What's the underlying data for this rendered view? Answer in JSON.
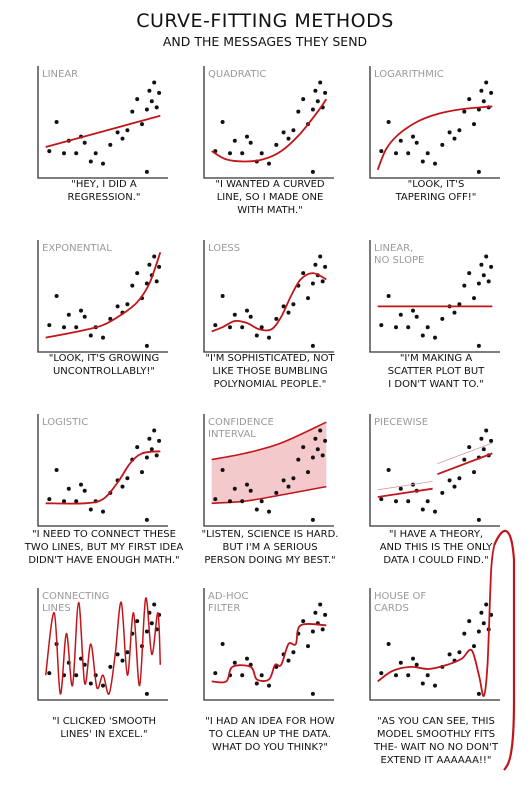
{
  "title": "CURVE-FITTING METHODS",
  "subtitle": "AND THE MESSAGES THEY SEND",
  "colors": {
    "curve": "#c0161b",
    "band": "#f4c9cc",
    "point": "#111111",
    "frame": "#333333",
    "label": "#9a9a9a"
  },
  "panels": [
    {
      "label": [
        "LINEAR"
      ],
      "caption": [
        "\"HEY, I DID A",
        "REGRESSION.\""
      ]
    },
    {
      "label": [
        "QUADRATIC"
      ],
      "caption": [
        "\"I WANTED A CURVED",
        "LINE, SO I MADE ONE",
        "WITH MATH.\""
      ]
    },
    {
      "label": [
        "LOGARITHMIC"
      ],
      "caption": [
        "\"LOOK, IT'S",
        "TAPERING OFF!\""
      ]
    },
    {
      "label": [
        "EXPONENTIAL"
      ],
      "caption": [
        "\"LOOK, IT'S GROWING",
        "UNCONTROLLABLY!\""
      ]
    },
    {
      "label": [
        "LOESS"
      ],
      "caption": [
        "\"I'M SOPHISTICATED, NOT",
        "LIKE THOSE BUMBLING",
        "POLYNOMIAL PEOPLE.\""
      ]
    },
    {
      "label": [
        "LINEAR,",
        "NO SLOPE"
      ],
      "caption": [
        "\"I'M MAKING A",
        "SCATTER PLOT BUT",
        "I DON'T WANT TO.\""
      ]
    },
    {
      "label": [
        "LOGISTIC"
      ],
      "caption": [
        "\"I NEED TO CONNECT THESE",
        "TWO LINES, BUT MY FIRST IDEA",
        "DIDN'T HAVE ENOUGH MATH.\""
      ]
    },
    {
      "label": [
        "CONFIDENCE",
        "INTERVAL"
      ],
      "caption": [
        "\"LISTEN, SCIENCE IS HARD.",
        "BUT I'M A SERIOUS",
        "PERSON DOING MY BEST.\""
      ]
    },
    {
      "label": [
        "PIECEWISE"
      ],
      "caption": [
        "\"I HAVE A THEORY,",
        "AND THIS IS THE ONLY",
        "DATA I COULD FIND.\""
      ]
    },
    {
      "label": [
        "CONNECTING",
        "LINES"
      ],
      "caption": [
        "\"I CLICKED 'SMOOTH",
        "LINES' IN EXCEL.\""
      ]
    },
    {
      "label": [
        "AD-HOC",
        "FILTER"
      ],
      "caption": [
        "\"I HAD AN IDEA FOR HOW",
        "TO CLEAN UP THE DATA.",
        "WHAT DO YOU THINK?\""
      ]
    },
    {
      "label": [
        "HOUSE OF",
        "CARDS"
      ],
      "caption": [
        "\"AS YOU CAN SEE, THIS",
        "MODEL SMOOTHLY FITS",
        "THE- WAIT NO NO DON'T",
        "EXTEND IT AAAAAA!!\""
      ]
    }
  ],
  "chart_data": {
    "type": "scatter",
    "xlim": [
      0,
      1
    ],
    "ylim": [
      0,
      1
    ],
    "points": [
      [
        0.06,
        0.22
      ],
      [
        0.12,
        0.5
      ],
      [
        0.18,
        0.2
      ],
      [
        0.22,
        0.32
      ],
      [
        0.28,
        0.2
      ],
      [
        0.32,
        0.36
      ],
      [
        0.35,
        0.3
      ],
      [
        0.4,
        0.12
      ],
      [
        0.44,
        0.2
      ],
      [
        0.5,
        0.1
      ],
      [
        0.56,
        0.28
      ],
      [
        0.62,
        0.4
      ],
      [
        0.66,
        0.34
      ],
      [
        0.7,
        0.42
      ],
      [
        0.74,
        0.6
      ],
      [
        0.78,
        0.72
      ],
      [
        0.82,
        0.48
      ],
      [
        0.86,
        0.62
      ],
      [
        0.88,
        0.8
      ],
      [
        0.9,
        0.7
      ],
      [
        0.92,
        0.88
      ],
      [
        0.94,
        0.64
      ],
      [
        0.96,
        0.78
      ],
      [
        0.86,
        0.02
      ]
    ],
    "fits": {
      "linear": [
        [
          0.03,
          0.26
        ],
        [
          0.97,
          0.56
        ]
      ],
      "quadratic": [
        [
          0.03,
          0.22
        ],
        [
          0.15,
          0.14
        ],
        [
          0.3,
          0.12
        ],
        [
          0.45,
          0.14
        ],
        [
          0.6,
          0.22
        ],
        [
          0.75,
          0.38
        ],
        [
          0.9,
          0.6
        ],
        [
          0.97,
          0.72
        ]
      ],
      "logarithmic": [
        [
          0.03,
          0.04
        ],
        [
          0.1,
          0.24
        ],
        [
          0.2,
          0.38
        ],
        [
          0.35,
          0.5
        ],
        [
          0.5,
          0.57
        ],
        [
          0.7,
          0.62
        ],
        [
          0.97,
          0.65
        ]
      ],
      "exponential": [
        [
          0.03,
          0.1
        ],
        [
          0.3,
          0.16
        ],
        [
          0.5,
          0.22
        ],
        [
          0.65,
          0.32
        ],
        [
          0.78,
          0.44
        ],
        [
          0.88,
          0.62
        ],
        [
          0.97,
          0.92
        ]
      ],
      "loess": [
        [
          0.03,
          0.16
        ],
        [
          0.12,
          0.2
        ],
        [
          0.22,
          0.26
        ],
        [
          0.32,
          0.24
        ],
        [
          0.42,
          0.18
        ],
        [
          0.52,
          0.18
        ],
        [
          0.6,
          0.3
        ],
        [
          0.68,
          0.5
        ],
        [
          0.76,
          0.66
        ],
        [
          0.86,
          0.72
        ],
        [
          0.97,
          0.66
        ]
      ],
      "no_slope": [
        [
          0.03,
          0.4
        ],
        [
          0.97,
          0.4
        ]
      ],
      "logistic": [
        [
          0.03,
          0.18
        ],
        [
          0.35,
          0.18
        ],
        [
          0.5,
          0.22
        ],
        [
          0.62,
          0.38
        ],
        [
          0.72,
          0.56
        ],
        [
          0.82,
          0.66
        ],
        [
          0.97,
          0.68
        ]
      ],
      "ci_upper": [
        [
          0.03,
          0.6
        ],
        [
          0.3,
          0.66
        ],
        [
          0.6,
          0.76
        ],
        [
          0.97,
          0.96
        ]
      ],
      "ci_lower": [
        [
          0.03,
          0.18
        ],
        [
          0.3,
          0.2
        ],
        [
          0.6,
          0.26
        ],
        [
          0.97,
          0.34
        ]
      ],
      "piecewise_a": [
        [
          0.03,
          0.24
        ],
        [
          0.48,
          0.32
        ]
      ],
      "piecewise_b": [
        [
          0.52,
          0.46
        ],
        [
          0.97,
          0.66
        ]
      ],
      "connecting": [
        [
          0.03,
          0.2
        ],
        [
          0.1,
          0.8
        ],
        [
          0.15,
          0.02
        ],
        [
          0.2,
          0.6
        ],
        [
          0.25,
          0.1
        ],
        [
          0.3,
          0.9
        ],
        [
          0.35,
          0.12
        ],
        [
          0.4,
          0.5
        ],
        [
          0.45,
          0.08
        ],
        [
          0.5,
          0.2
        ],
        [
          0.55,
          0.02
        ],
        [
          0.6,
          0.4
        ],
        [
          0.65,
          0.9
        ],
        [
          0.7,
          0.2
        ],
        [
          0.75,
          0.8
        ],
        [
          0.8,
          0.1
        ],
        [
          0.85,
          0.94
        ],
        [
          0.9,
          0.4
        ],
        [
          0.95,
          0.8
        ],
        [
          0.97,
          0.3
        ]
      ],
      "adhoc": [
        [
          0.03,
          0.14
        ],
        [
          0.15,
          0.14
        ],
        [
          0.2,
          0.28
        ],
        [
          0.35,
          0.28
        ],
        [
          0.4,
          0.16
        ],
        [
          0.5,
          0.16
        ],
        [
          0.55,
          0.3
        ],
        [
          0.6,
          0.3
        ],
        [
          0.66,
          0.5
        ],
        [
          0.72,
          0.5
        ],
        [
          0.76,
          0.68
        ],
        [
          0.97,
          0.68
        ]
      ],
      "house_of_cards": [
        [
          0.03,
          0.14
        ],
        [
          0.15,
          0.24
        ],
        [
          0.3,
          0.28
        ],
        [
          0.45,
          0.26
        ],
        [
          0.6,
          0.3
        ],
        [
          0.72,
          0.36
        ],
        [
          0.8,
          0.44
        ],
        [
          0.86,
          0.2
        ],
        [
          0.9,
          0.0
        ],
        [
          0.93,
          0.3
        ],
        [
          0.96,
          1.2
        ],
        [
          0.985,
          1.45
        ]
      ]
    }
  }
}
